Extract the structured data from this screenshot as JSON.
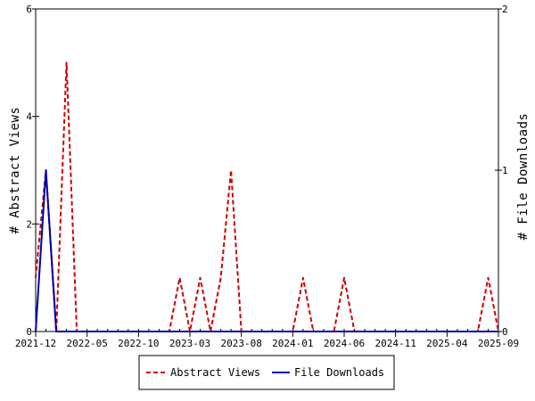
{
  "chart_data": {
    "type": "line",
    "title": "",
    "ylabel_left": "# Abstract Views",
    "ylabel_right": "# File Downloads",
    "ylim_left": [
      0,
      6
    ],
    "ylim_right": [
      0,
      2
    ],
    "yticks_left": [
      "0",
      "2",
      "4",
      "6"
    ],
    "yticks_right": [
      "0",
      "1",
      "2"
    ],
    "x_range": [
      "2021-12",
      "2025-09"
    ],
    "x_tick_labels": [
      "2021-12",
      "2022-05",
      "2022-10",
      "2023-03",
      "2023-08",
      "2024-01",
      "2024-06",
      "2024-11",
      "2025-04",
      "2025-09"
    ],
    "x": [
      "2021-12",
      "2022-01",
      "2022-02",
      "2022-03",
      "2022-04",
      "2022-05",
      "2022-06",
      "2022-07",
      "2022-08",
      "2022-09",
      "2022-10",
      "2022-11",
      "2022-12",
      "2023-01",
      "2023-02",
      "2023-03",
      "2023-04",
      "2023-05",
      "2023-06",
      "2023-07",
      "2023-08",
      "2023-09",
      "2023-10",
      "2023-11",
      "2023-12",
      "2024-01",
      "2024-02",
      "2024-03",
      "2024-04",
      "2024-05",
      "2024-06",
      "2024-07",
      "2024-08",
      "2024-09",
      "2024-10",
      "2024-11",
      "2024-12",
      "2025-01",
      "2025-02",
      "2025-03",
      "2025-04",
      "2025-05",
      "2025-06",
      "2025-07",
      "2025-08",
      "2025-09"
    ],
    "series": [
      {
        "name": "Abstract Views",
        "axis": "left",
        "color": "#cc0000",
        "style": "dashed",
        "values": [
          1,
          3,
          0,
          5,
          0,
          0,
          0,
          0,
          0,
          0,
          0,
          0,
          0,
          0,
          1,
          0,
          1,
          0,
          1,
          3,
          0,
          0,
          0,
          0,
          0,
          0,
          1,
          0,
          0,
          0,
          1,
          0,
          0,
          0,
          0,
          0,
          0,
          0,
          0,
          0,
          0,
          0,
          0,
          0,
          1,
          0
        ]
      },
      {
        "name": "File Downloads",
        "axis": "right",
        "color": "#0000aa",
        "style": "solid",
        "values": [
          0,
          1,
          0,
          0,
          0,
          0,
          0,
          0,
          0,
          0,
          0,
          0,
          0,
          0,
          0,
          0,
          0,
          0,
          0,
          0,
          0,
          0,
          0,
          0,
          0,
          0,
          0,
          0,
          0,
          0,
          0,
          0,
          0,
          0,
          0,
          0,
          0,
          0,
          0,
          0,
          0,
          0,
          0,
          0,
          0,
          0
        ]
      }
    ],
    "grid": false,
    "legend_position": "bottom"
  }
}
